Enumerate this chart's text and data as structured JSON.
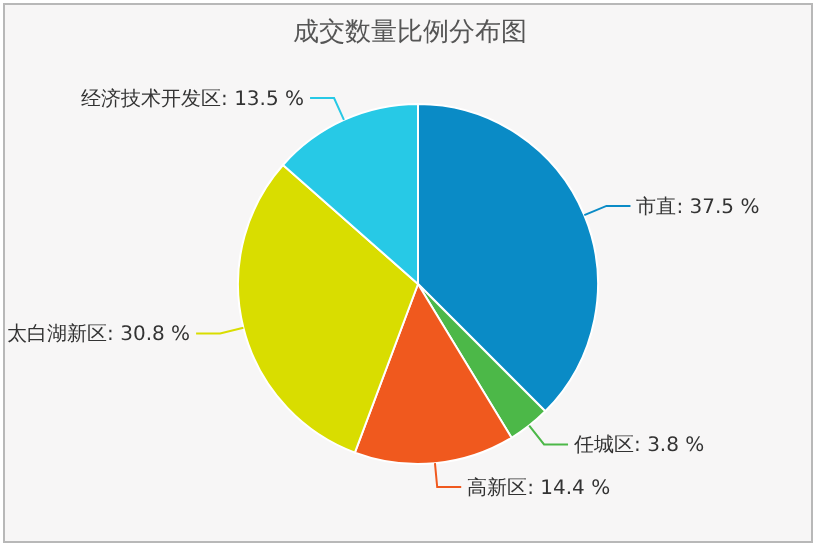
{
  "chart_data": {
    "type": "pie",
    "title": "成交数量比例分布图",
    "categories": [
      "市直",
      "任城区",
      "高新区",
      "太白湖新区",
      "经济技术开发区"
    ],
    "values": [
      37.5,
      3.8,
      14.4,
      30.8,
      13.5
    ],
    "value_labels": [
      "37.5 %",
      "3.8 %",
      "14.4 %",
      "30.8 %",
      "13.5 %"
    ],
    "colors": [
      "#0a8bc6",
      "#4cb848",
      "#f0591e",
      "#d9dd00",
      "#27c9e6"
    ]
  }
}
